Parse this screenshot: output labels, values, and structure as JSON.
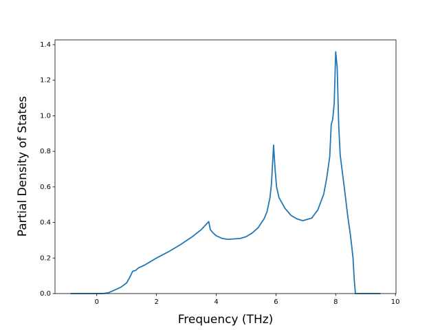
{
  "chart_data": {
    "type": "line",
    "x_label": "Frequency (THz)",
    "y_label": "Partial Density of States",
    "series": [
      {
        "color": "#1f77b4",
        "x": [
          -0.88,
          0.2,
          0.4,
          0.6,
          0.8,
          1.0,
          1.1,
          1.2,
          1.3,
          1.4,
          1.6,
          1.8,
          2.0,
          2.4,
          2.8,
          3.2,
          3.5,
          3.75,
          3.8,
          3.9,
          4.0,
          4.2,
          4.4,
          4.8,
          5.0,
          5.2,
          5.4,
          5.6,
          5.7,
          5.8,
          5.85,
          5.92,
          5.97,
          6.02,
          6.1,
          6.3,
          6.5,
          6.7,
          6.9,
          7.2,
          7.4,
          7.6,
          7.7,
          7.8,
          7.85,
          7.9,
          7.95,
          8.0,
          8.05,
          8.1,
          8.15,
          8.3,
          8.4,
          8.5,
          8.58,
          8.62,
          8.66,
          9.5
        ],
        "values": [
          0,
          0,
          0.005,
          0.02,
          0.035,
          0.06,
          0.09,
          0.125,
          0.13,
          0.145,
          0.16,
          0.18,
          0.2,
          0.235,
          0.275,
          0.32,
          0.36,
          0.405,
          0.36,
          0.34,
          0.325,
          0.31,
          0.305,
          0.31,
          0.32,
          0.34,
          0.37,
          0.42,
          0.46,
          0.54,
          0.62,
          0.835,
          0.7,
          0.6,
          0.54,
          0.48,
          0.44,
          0.42,
          0.41,
          0.425,
          0.47,
          0.56,
          0.65,
          0.77,
          0.95,
          0.98,
          1.07,
          1.36,
          1.27,
          0.95,
          0.78,
          0.58,
          0.44,
          0.32,
          0.2,
          0.08,
          0,
          0
        ]
      }
    ],
    "xlim": [
      -1.399,
      10.019
    ],
    "ylim": [
      0,
      1.427
    ],
    "xticks": [
      0,
      2,
      4,
      6,
      8,
      10
    ],
    "yticks": [
      {
        "value": 0,
        "label": "0.0"
      },
      0.2,
      0.4,
      0.6,
      0.8,
      {
        "value": 1,
        "label": "1.0"
      },
      1.2,
      1.4
    ]
  }
}
